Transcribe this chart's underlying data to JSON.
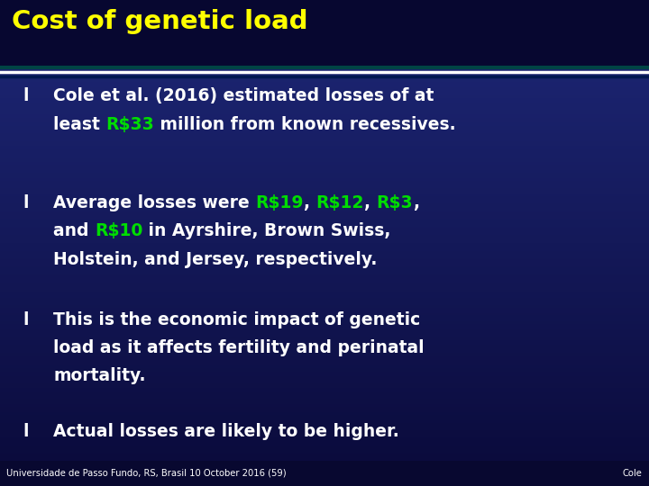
{
  "title": "Cost of genetic load",
  "title_color": "#FFFF00",
  "bg_top_color": "#0a0a3a",
  "bg_bottom_color": "#2a3a8a",
  "header_bg": "#070730",
  "white": "#FFFFFF",
  "green": "#00DD00",
  "bullet_color": "#FFFFFF",
  "footer_left": "Universidade de Passo Fundo, RS, Brasil 10 October 2016 (59)",
  "footer_right": "Cole",
  "separator_color1": "#006060",
  "separator_color2": "#FFFFFF",
  "separator_color3": "#003080",
  "bullets": [
    {
      "parts": [
        {
          "text": "Cole et al. (2016) estimated losses of at\nleast ",
          "color": "#FFFFFF"
        },
        {
          "text": "R$33",
          "color": "#00DD00"
        },
        {
          "text": " million from known recessives.",
          "color": "#FFFFFF"
        }
      ]
    },
    {
      "parts": [
        {
          "text": "Average losses were ",
          "color": "#FFFFFF"
        },
        {
          "text": "R$19",
          "color": "#00DD00"
        },
        {
          "text": ", ",
          "color": "#FFFFFF"
        },
        {
          "text": "R$12",
          "color": "#00DD00"
        },
        {
          "text": ", ",
          "color": "#FFFFFF"
        },
        {
          "text": "R$3",
          "color": "#00DD00"
        },
        {
          "text": ",\nand ",
          "color": "#FFFFFF"
        },
        {
          "text": "R$10",
          "color": "#00DD00"
        },
        {
          "text": " in Ayrshire, Brown Swiss,\nHolstein, and Jersey, respectively.",
          "color": "#FFFFFF"
        }
      ]
    },
    {
      "parts": [
        {
          "text": "This is the economic impact of genetic\nload as it affects fertility and perinatal\nmortality.",
          "color": "#FFFFFF"
        }
      ]
    },
    {
      "parts": [
        {
          "text": "Actual losses are likely to be higher.",
          "color": "#FFFFFF"
        }
      ]
    }
  ],
  "figwidth": 7.2,
  "figheight": 5.4,
  "dpi": 100
}
